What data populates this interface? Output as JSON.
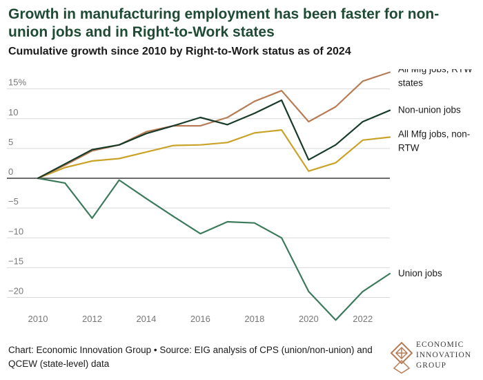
{
  "title": "Growth in manufacturing employment has been faster for non-union jobs and in Right-to-Work states",
  "subtitle": "Cumulative growth since 2010 by Right-to-Work status as of 2024",
  "footer": "Chart: Economic Innovation Group • Source: EIG analysis of CPS (union/non-union) and QCEW (state-level) data",
  "logo": {
    "line1": "ECONOMIC",
    "line2": "INNOVATION",
    "line3": "GROUP",
    "monogram": "EIG"
  },
  "colors": {
    "title": "#1f4a34",
    "rtw": "#b77b55",
    "nonunion": "#173b28",
    "nonrtw": "#c9a227",
    "union": "#3c7a5c",
    "grid": "#d9d9d9",
    "axis": "#3a3a3a",
    "tick": "#777777"
  },
  "chart_data": {
    "type": "line",
    "title": "Growth in manufacturing employment has been faster for non-union jobs and in Right-to-Work states",
    "subtitle": "Cumulative growth since 2010 by Right-to-Work status as of 2024",
    "xlabel": "",
    "ylabel": "",
    "x": [
      2010,
      2011,
      2012,
      2013,
      2014,
      2015,
      2016,
      2017,
      2018,
      2019,
      2020,
      2021,
      2022,
      2023
    ],
    "xticks": [
      "2010",
      "2012",
      "2014",
      "2016",
      "2018",
      "2020",
      "2022"
    ],
    "xtick_values": [
      2010,
      2012,
      2014,
      2016,
      2018,
      2020,
      2022
    ],
    "yticks": [
      "15%",
      "10",
      "5",
      "0",
      "−5",
      "−10",
      "−15",
      "−20"
    ],
    "ytick_values": [
      15,
      10,
      5,
      0,
      -5,
      -10,
      -15,
      -20
    ],
    "xlim": [
      2010,
      2023
    ],
    "ylim": [
      -24,
      16
    ],
    "grid": true,
    "series": [
      {
        "name": "All Mfg jobs, RTW states",
        "key": "rtw",
        "color": "#b77b55",
        "values": [
          0,
          2.2,
          4.6,
          5.6,
          7.8,
          8.8,
          8.8,
          10.2,
          12.9,
          14.7,
          9.5,
          12.0,
          16.3,
          17.8
        ]
      },
      {
        "name": "Non-union jobs",
        "key": "nonunion",
        "color": "#173b28",
        "values": [
          0,
          2.4,
          4.8,
          5.6,
          7.5,
          8.8,
          10.2,
          9.0,
          10.9,
          13.1,
          3.1,
          5.6,
          9.5,
          11.4
        ]
      },
      {
        "name": "All Mfg jobs, non-RTW",
        "key": "nonrtw",
        "color": "#c9a227",
        "values": [
          0,
          1.8,
          2.9,
          3.3,
          4.4,
          5.5,
          5.6,
          6.0,
          7.6,
          8.1,
          1.2,
          2.6,
          6.4,
          6.9
        ]
      },
      {
        "name": "Union jobs",
        "key": "union",
        "color": "#3c7a5c",
        "values": [
          0,
          -0.8,
          -6.7,
          -0.3,
          -3.4,
          -6.4,
          -9.3,
          -7.3,
          -7.5,
          -10.0,
          -19.0,
          -23.8,
          -19.0,
          -16.0
        ]
      }
    ]
  }
}
